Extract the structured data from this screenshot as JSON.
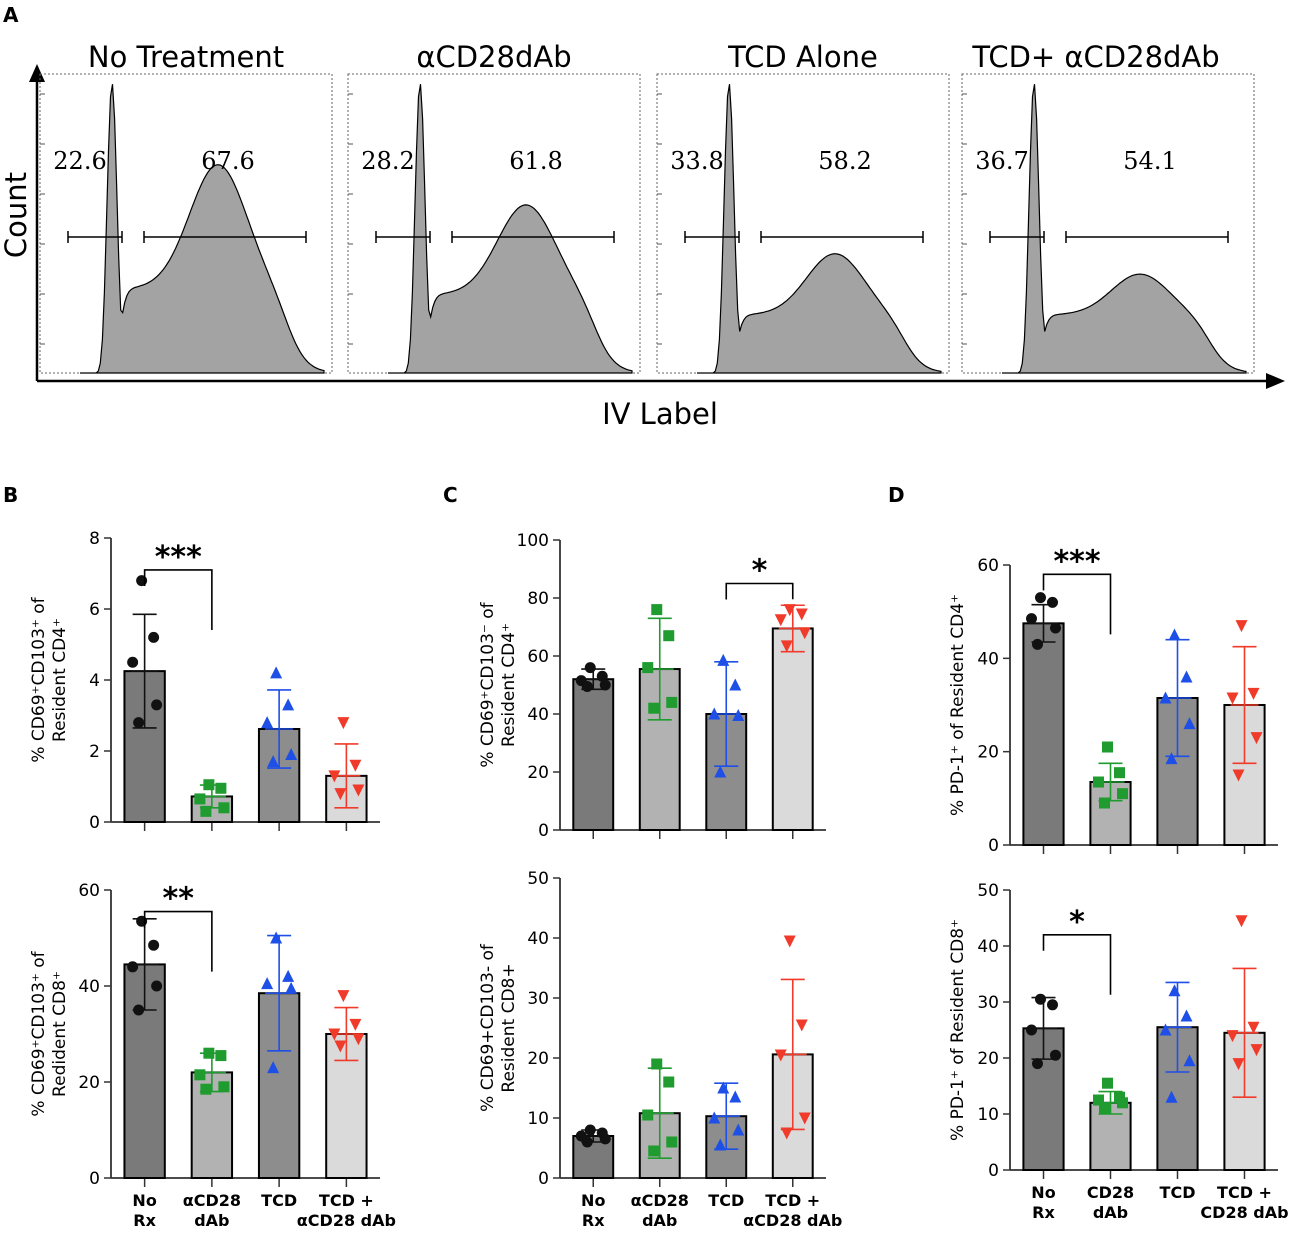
{
  "figure": {
    "panel_letters": [
      "A",
      "B",
      "C",
      "D"
    ]
  },
  "chart_data": [
    {
      "id": "A",
      "type": "histogram",
      "ylabel": "Count",
      "xlabel": "IV Label",
      "panels": [
        {
          "title": "No Treatment",
          "left_gate": "22.6",
          "right_gate": "67.6",
          "peak1": 1.0,
          "valley": 0.29,
          "peak2": 0.6
        },
        {
          "title": "αCD28dAb",
          "left_gate": "28.2",
          "right_gate": "61.8",
          "peak1": 1.0,
          "valley": 0.27,
          "peak2": 0.47
        },
        {
          "title": "TCD Alone",
          "left_gate": "33.8",
          "right_gate": "58.2",
          "peak1": 1.0,
          "valley": 0.2,
          "peak2": 0.33
        },
        {
          "title": "TCD+ αCD28dAb",
          "left_gate": "36.7",
          "right_gate": "54.1",
          "peak1": 1.0,
          "valley": 0.2,
          "peak2": 0.26
        }
      ]
    },
    {
      "id": "B-top",
      "panel": "B",
      "type": "bar",
      "ylabel": [
        "% CD69⁺CD103⁺ of",
        "Resident CD4⁺"
      ],
      "ylim": [
        0,
        8
      ],
      "yticks": [
        0,
        2,
        4,
        6,
        8
      ],
      "yticklabels": [
        "0",
        "2",
        "4",
        "6",
        "8"
      ],
      "categories": [
        "No Rx",
        "αCD28 dAb",
        "TCD",
        "TCD + αCD28 dAb"
      ],
      "means": [
        4.25,
        0.72,
        2.62,
        1.3
      ],
      "sd": [
        1.6,
        0.32,
        1.1,
        0.9
      ],
      "points": [
        [
          6.8,
          5.2,
          4.5,
          3.3,
          2.8
        ],
        [
          1.05,
          0.95,
          0.65,
          0.4,
          0.3
        ],
        [
          4.2,
          3.3,
          2.8,
          1.9,
          1.7
        ],
        [
          2.8,
          1.6,
          1.3,
          0.9,
          0.8
        ]
      ],
      "sig": {
        "from": 0,
        "to": 1,
        "label": "***",
        "y": 7.1
      }
    },
    {
      "id": "B-bottom",
      "panel": "B",
      "type": "bar",
      "ylabel": [
        "% CD69⁺CD103⁺ of",
        "Redident CD8⁺"
      ],
      "ylim": [
        0,
        60
      ],
      "yticks": [
        0,
        20,
        40,
        60
      ],
      "yticklabels": [
        "0",
        "20",
        "40",
        "60"
      ],
      "categories": [
        "No Rx",
        "αCD28 dAb",
        "TCD",
        "TCD + αCD28 dAb"
      ],
      "catlabels": [
        [
          "No",
          "Rx"
        ],
        [
          "αCD28",
          "dAb"
        ],
        [
          "TCD"
        ],
        [
          "TCD +",
          "αCD28 dAb"
        ]
      ],
      "means": [
        44.5,
        22.0,
        38.5,
        30.0
      ],
      "sd": [
        9.5,
        4.0,
        12.0,
        5.5
      ],
      "points": [
        [
          53.5,
          48.5,
          44.0,
          40.0,
          35.0
        ],
        [
          26.0,
          25.5,
          21.5,
          19.0,
          18.5
        ],
        [
          50.0,
          42.0,
          40.5,
          39.5,
          23.0
        ],
        [
          38.0,
          32.0,
          30.0,
          29.0,
          27.5
        ]
      ],
      "sig": {
        "from": 0,
        "to": 1,
        "label": "**",
        "y": 55.5
      }
    },
    {
      "id": "C-top",
      "panel": "C",
      "type": "bar",
      "ylabel": [
        "% CD69⁺CD103⁻ of",
        "Resident CD4⁺"
      ],
      "ylim": [
        0,
        100
      ],
      "yticks": [
        0,
        20,
        40,
        60,
        80,
        100
      ],
      "yticklabels": [
        "0",
        "20",
        "40",
        "60",
        "80",
        "100"
      ],
      "categories": [
        "No Rx",
        "αCD28 dAb",
        "TCD",
        "TCD + αCD28 dAb"
      ],
      "means": [
        52.0,
        55.5,
        40.0,
        69.5
      ],
      "sd": [
        3.5,
        17.5,
        18.0,
        8.0
      ],
      "points": [
        [
          56.0,
          53.0,
          51.5,
          50.0,
          49.5
        ],
        [
          76.0,
          67.0,
          56.0,
          44.0,
          42.0
        ],
        [
          58.5,
          50.0,
          40.0,
          39.5,
          20.0
        ],
        [
          76.0,
          74.5,
          72.5,
          68.0,
          63.5
        ]
      ],
      "sig": {
        "from": 2,
        "to": 3,
        "label": "*",
        "y": 85
      }
    },
    {
      "id": "C-bottom",
      "panel": "C",
      "type": "bar",
      "ylabel": [
        "% CD69+CD103- of",
        "Resident CD8+"
      ],
      "ylim": [
        0,
        50
      ],
      "yticks": [
        0,
        10,
        20,
        30,
        40,
        50
      ],
      "yticklabels": [
        "0",
        "10",
        "20",
        "30",
        "40",
        "50"
      ],
      "categories": [
        "No Rx",
        "αCD28 dAb",
        "TCD",
        "TCD + αCD28 dAb"
      ],
      "catlabels": [
        [
          "No",
          "Rx"
        ],
        [
          "αCD28",
          "dAb"
        ],
        [
          "TCD"
        ],
        [
          "TCD +",
          "αCD28 dAb"
        ]
      ],
      "means": [
        7.0,
        10.8,
        10.3,
        20.6
      ],
      "sd": [
        1.0,
        7.5,
        5.5,
        12.5
      ],
      "points": [
        [
          8.0,
          7.5,
          7.0,
          6.5,
          6.0
        ],
        [
          19.0,
          16.0,
          10.5,
          6.0,
          4.5
        ],
        [
          15.0,
          13.5,
          10.0,
          8.0,
          5.5
        ],
        [
          39.5,
          25.5,
          20.5,
          10.0,
          7.5
        ]
      ],
      "sig": null
    },
    {
      "id": "D-top",
      "panel": "D",
      "type": "bar",
      "ylabel": [
        "% PD-1⁺ of Resident CD4⁺"
      ],
      "ylim": [
        0,
        60
      ],
      "yticks": [
        0,
        20,
        40,
        60
      ],
      "yticklabels": [
        "0",
        "20",
        "40",
        "60"
      ],
      "categories": [
        "No Rx",
        "CD28 dAb",
        "TCD",
        "TCD + CD28 dAb"
      ],
      "means": [
        47.5,
        13.5,
        31.5,
        30.0
      ],
      "sd": [
        4.0,
        4.0,
        12.5,
        12.5
      ],
      "points": [
        [
          53.0,
          52.0,
          48.5,
          46.5,
          43.0
        ],
        [
          21.0,
          15.5,
          13.5,
          11.0,
          9.0
        ],
        [
          45.0,
          36.0,
          31.5,
          26.0,
          18.5
        ],
        [
          47.0,
          32.5,
          31.5,
          23.0,
          15.0
        ]
      ],
      "sig": {
        "from": 0,
        "to": 1,
        "label": "***",
        "y": 58
      }
    },
    {
      "id": "D-bottom",
      "panel": "D",
      "type": "bar",
      "ylabel": [
        "% PD-1⁺ of Resident CD8⁺"
      ],
      "ylim": [
        0,
        50
      ],
      "yticks": [
        0,
        10,
        20,
        30,
        40,
        50
      ],
      "yticklabels": [
        "0",
        "10",
        "20",
        "30",
        "40",
        "50"
      ],
      "categories": [
        "No Rx",
        "CD28 dAb",
        "TCD",
        "TCD + CD28 dAb"
      ],
      "catlabels": [
        [
          "No",
          "Rx"
        ],
        [
          "CD28",
          "dAb"
        ],
        [
          "TCD"
        ],
        [
          "TCD +",
          "CD28 dAb"
        ]
      ],
      "means": [
        25.3,
        12.0,
        25.5,
        24.5
      ],
      "sd": [
        5.5,
        2.0,
        8.0,
        11.5
      ],
      "points": [
        [
          30.5,
          29.5,
          25.0,
          20.5,
          19.0
        ],
        [
          15.5,
          13.0,
          12.5,
          12.0,
          11.0
        ],
        [
          32.0,
          27.5,
          25.0,
          19.5,
          13.0
        ],
        [
          44.5,
          25.5,
          24.0,
          21.5,
          19.0
        ]
      ],
      "sig": {
        "from": 0,
        "to": 1,
        "label": "*",
        "y": 42
      }
    }
  ],
  "style": {
    "bar_colors": [
      "#7a7a7a",
      "#b2b2b2",
      "#8d8d8d",
      "#dadada"
    ],
    "group_colors": [
      "#111111",
      "#1f9b2f",
      "#1e4fe6",
      "#f03a2a"
    ],
    "markers": [
      "circle",
      "square",
      "triangle-up",
      "triangle-down"
    ],
    "hist_fill": "#a3a3a3"
  }
}
